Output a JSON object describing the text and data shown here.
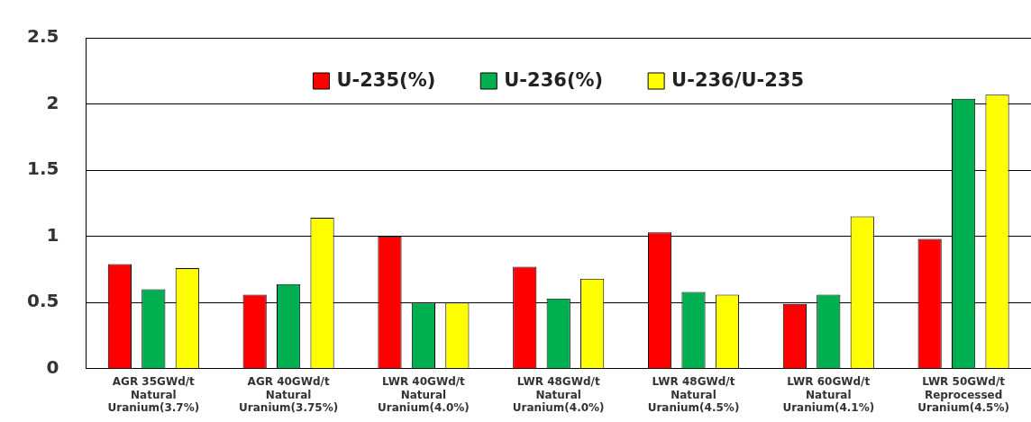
{
  "chart_data": {
    "type": "bar",
    "categories": [
      "AGR 35GWd/t\nNatural\nUranium(3.7%)",
      "AGR 40GWd/t\nNatural\nUranium(3.75%)",
      "LWR 40GWd/t\nNatural\nUranium(4.0%)",
      "LWR 48GWd/t\nNatural\nUranium(4.0%)",
      "LWR 48GWd/t\nNatural\nUranium(4.5%)",
      "LWR 60GWd/t\nNatural\nUranium(4.1%)",
      "LWR 50GWd/t\nReprocessed\nUranium(4.5%)"
    ],
    "series": [
      {
        "name": "U-235(%)",
        "color": "#ff0000",
        "values": [
          0.79,
          0.56,
          1.0,
          0.77,
          1.03,
          0.49,
          0.98
        ]
      },
      {
        "name": "U-236(%)",
        "color": "#00b050",
        "values": [
          0.6,
          0.64,
          0.5,
          0.53,
          0.58,
          0.56,
          2.04
        ]
      },
      {
        "name": "U-236/U-235",
        "color": "#ffff00",
        "values": [
          0.76,
          1.14,
          0.5,
          0.68,
          0.56,
          1.15,
          2.07
        ]
      }
    ],
    "ylim": [
      0,
      2.5
    ],
    "yticks": [
      0,
      0.5,
      {
        "value": 1,
        "label": "1"
      },
      1.5,
      {
        "value": 2,
        "label": "2"
      },
      2.5
    ],
    "grid": "y",
    "legend": "top"
  }
}
